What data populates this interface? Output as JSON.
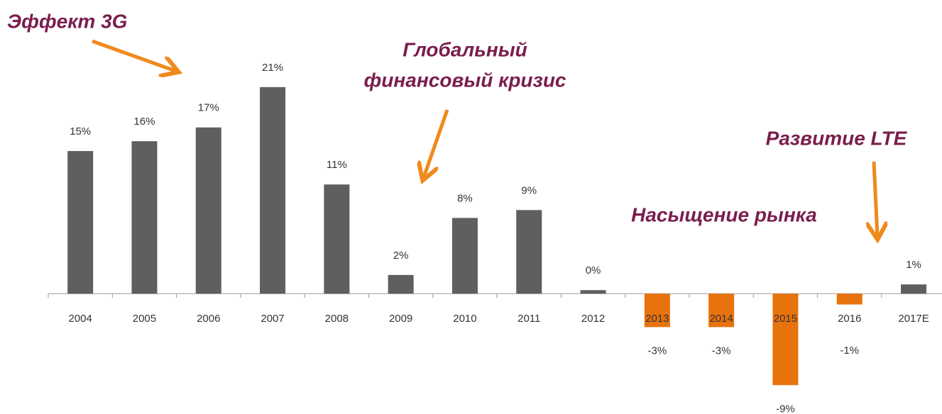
{
  "chart_data": {
    "type": "bar",
    "categories": [
      "2004",
      "2005",
      "2006",
      "2007",
      "2008",
      "2009",
      "2010",
      "2011",
      "2012",
      "2013",
      "2014",
      "2015",
      "2016",
      "2017E"
    ],
    "values": [
      14.5,
      15.5,
      16.9,
      21,
      11.1,
      1.9,
      7.7,
      8.5,
      0.36,
      -3.4,
      -3.4,
      -9.3,
      -1.1,
      0.94
    ],
    "value_labels": [
      "15%",
      "16%",
      "17%",
      "21%",
      "11%",
      "2%",
      "8%",
      "9%",
      "0%",
      "-3%",
      "-3%",
      "-9%",
      "-1%",
      "1%"
    ],
    "color": "#5f5f5f",
    "negative_color": "#e8720c",
    "ylim": [
      -10,
      22
    ],
    "annotations": [
      {
        "lines": [
          "Эффект 3G"
        ]
      },
      {
        "lines": [
          "Глобальный",
          "финансовый кризис"
        ]
      },
      {
        "lines": [
          "Развитие LTE"
        ]
      },
      {
        "lines": [
          "Насыщение рынка"
        ]
      }
    ]
  }
}
